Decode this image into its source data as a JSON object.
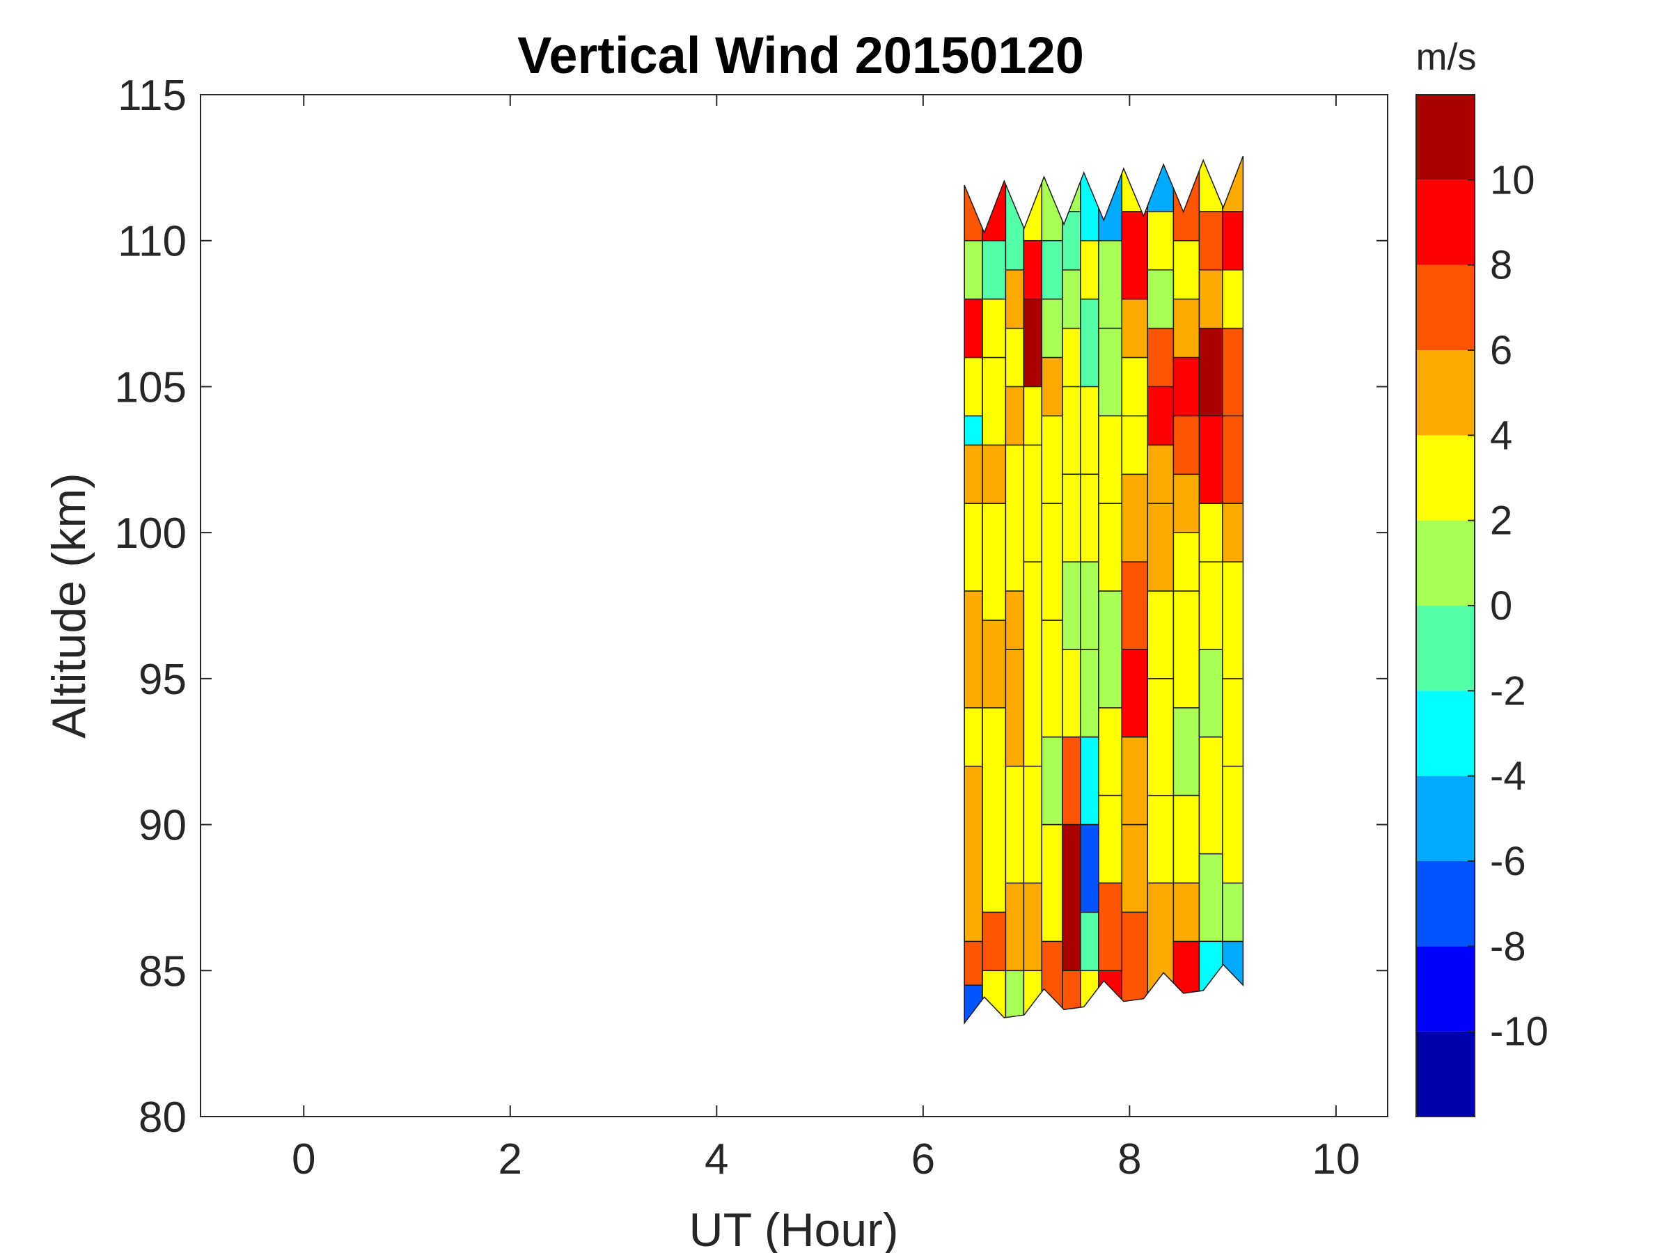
{
  "chart_data": {
    "type": "heatmap",
    "subtype": "filled-contour",
    "title": "Vertical Wind 20150120",
    "xlabel": "UT (Hour)",
    "ylabel": "Altitude (km)",
    "xlim": [
      -1,
      10.5
    ],
    "ylim": [
      80,
      115
    ],
    "xticks": [
      "0",
      "2",
      "4",
      "6",
      "8",
      "10"
    ],
    "yticks": [
      "80",
      "85",
      "90",
      "95",
      "100",
      "105",
      "110",
      "115"
    ],
    "x_tick_values": [
      0,
      2,
      4,
      6,
      8,
      10
    ],
    "y_tick_values": [
      80,
      85,
      90,
      95,
      100,
      105,
      110,
      115
    ],
    "grid": false,
    "data_extent": {
      "x": [
        6.4,
        9.1
      ],
      "y_bottom_left": 83.2,
      "y_bottom_right": 84.5,
      "y_top_left": 111.5,
      "y_top_right": 112.5
    },
    "colorbar": {
      "unit": "m/s",
      "position": "right",
      "levels": [
        -12,
        -10,
        -8,
        -6,
        -4,
        -2,
        0,
        2,
        4,
        6,
        8,
        10,
        12
      ],
      "tick_values": [
        -10,
        -8,
        -6,
        -4,
        -2,
        0,
        2,
        4,
        6,
        8,
        10
      ],
      "tick_labels": [
        "-10",
        "-8",
        "-6",
        "-4",
        "-2",
        "0",
        "2",
        "4",
        "6",
        "8",
        "10"
      ],
      "colors": [
        "#0000aa",
        "#0000ff",
        "#0055ff",
        "#00aaff",
        "#00ffff",
        "#55ffaa",
        "#aaff55",
        "#ffff00",
        "#ffaa00",
        "#ff5500",
        "#ff0000",
        "#aa0000"
      ]
    },
    "columns": [
      {
        "ut": 6.45,
        "bands": [
          [
            83.5,
            -8
          ],
          [
            84.5,
            6
          ],
          [
            86,
            4
          ],
          [
            92,
            3
          ],
          [
            94,
            5
          ],
          [
            98,
            3
          ],
          [
            101,
            4
          ],
          [
            103,
            -3
          ],
          [
            104,
            2
          ],
          [
            106,
            9
          ],
          [
            108,
            0
          ],
          [
            110,
            7
          ]
        ]
      },
      {
        "ut": 6.7,
        "bands": [
          [
            83.5,
            2
          ],
          [
            85,
            6
          ],
          [
            87,
            3
          ],
          [
            94,
            5
          ],
          [
            97,
            3
          ],
          [
            101,
            5
          ],
          [
            103,
            3
          ],
          [
            106,
            2
          ],
          [
            108,
            -2
          ],
          [
            110,
            8
          ]
        ]
      },
      {
        "ut": 6.9,
        "bands": [
          [
            83.5,
            0
          ],
          [
            85,
            5
          ],
          [
            88,
            2
          ],
          [
            92,
            4
          ],
          [
            96,
            5
          ],
          [
            98,
            3
          ],
          [
            103,
            5
          ],
          [
            105,
            2
          ],
          [
            107,
            4
          ],
          [
            109,
            -1
          ]
        ]
      },
      {
        "ut": 7.05,
        "bands": [
          [
            83.5,
            3
          ],
          [
            85,
            5
          ],
          [
            88,
            2
          ],
          [
            92,
            3
          ],
          [
            99,
            2
          ],
          [
            103,
            3
          ],
          [
            105,
            11
          ],
          [
            108,
            8
          ],
          [
            110,
            3
          ]
        ]
      },
      {
        "ut": 7.25,
        "bands": [
          [
            84,
            6
          ],
          [
            86,
            2
          ],
          [
            90,
            0
          ],
          [
            93,
            2
          ],
          [
            97,
            3
          ],
          [
            101,
            2
          ],
          [
            104,
            5
          ],
          [
            106,
            0
          ],
          [
            108,
            -1
          ],
          [
            110,
            1
          ]
        ]
      },
      {
        "ut": 7.45,
        "bands": [
          [
            84,
            7
          ],
          [
            85,
            11
          ],
          [
            90,
            7
          ],
          [
            93,
            2
          ],
          [
            96,
            1
          ],
          [
            99,
            3
          ],
          [
            102,
            2
          ],
          [
            105,
            3
          ],
          [
            107,
            0
          ],
          [
            109,
            -2
          ],
          [
            111,
            1
          ]
        ]
      },
      {
        "ut": 7.6,
        "bands": [
          [
            84,
            3
          ],
          [
            85,
            -2
          ],
          [
            87,
            -8
          ],
          [
            90,
            -4
          ],
          [
            93,
            1
          ],
          [
            96,
            0
          ],
          [
            99,
            2
          ],
          [
            102,
            3
          ],
          [
            105,
            -1
          ],
          [
            108,
            2
          ],
          [
            110,
            -3
          ]
        ]
      },
      {
        "ut": 7.8,
        "bands": [
          [
            83.5,
            9
          ],
          [
            85,
            6
          ],
          [
            88,
            3
          ],
          [
            91,
            2
          ],
          [
            94,
            1
          ],
          [
            98,
            3
          ],
          [
            101,
            2
          ],
          [
            104,
            1
          ],
          [
            107,
            0
          ],
          [
            110,
            -5
          ]
        ]
      },
      {
        "ut": 8.05,
        "bands": [
          [
            85,
            6
          ],
          [
            87,
            4
          ],
          [
            90,
            5
          ],
          [
            93,
            9
          ],
          [
            96,
            6
          ],
          [
            99,
            4
          ],
          [
            102,
            3
          ],
          [
            104,
            2
          ],
          [
            106,
            5
          ],
          [
            108,
            9
          ],
          [
            111,
            2
          ]
        ]
      },
      {
        "ut": 8.3,
        "bands": [
          [
            85,
            4
          ],
          [
            88,
            3
          ],
          [
            91,
            2
          ],
          [
            95,
            3
          ],
          [
            98,
            4
          ],
          [
            101,
            5
          ],
          [
            103,
            9
          ],
          [
            105,
            7
          ],
          [
            107,
            1
          ],
          [
            109,
            3
          ],
          [
            111,
            -6
          ]
        ]
      },
      {
        "ut": 8.55,
        "bands": [
          [
            84.5,
            8
          ],
          [
            86,
            5
          ],
          [
            88,
            2
          ],
          [
            91,
            1
          ],
          [
            94,
            2
          ],
          [
            98,
            3
          ],
          [
            100,
            4
          ],
          [
            102,
            6
          ],
          [
            104,
            8
          ],
          [
            106,
            5
          ],
          [
            108,
            2
          ],
          [
            110,
            7
          ]
        ]
      },
      {
        "ut": 8.8,
        "bands": [
          [
            84.5,
            -3
          ],
          [
            86,
            1
          ],
          [
            89,
            2
          ],
          [
            93,
            1
          ],
          [
            96,
            2
          ],
          [
            99,
            3
          ],
          [
            101,
            9
          ],
          [
            104,
            10
          ],
          [
            107,
            4
          ],
          [
            109,
            6
          ],
          [
            111,
            2
          ]
        ]
      },
      {
        "ut": 9.0,
        "bands": [
          [
            84.5,
            -5
          ],
          [
            86,
            0
          ],
          [
            88,
            3
          ],
          [
            92,
            2
          ],
          [
            95,
            3
          ],
          [
            99,
            4
          ],
          [
            101,
            6
          ],
          [
            104,
            7
          ],
          [
            107,
            2
          ],
          [
            109,
            8
          ],
          [
            111,
            5
          ]
        ]
      }
    ]
  }
}
